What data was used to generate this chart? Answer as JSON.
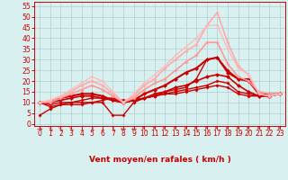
{
  "xlabel": "Vent moyen/en rafales ( km/h )",
  "bg_color": "#d8f0f0",
  "grid_color": "#b0d0d0",
  "x_ticks": [
    0,
    1,
    2,
    3,
    4,
    5,
    6,
    7,
    8,
    9,
    10,
    11,
    12,
    13,
    14,
    15,
    16,
    17,
    18,
    19,
    20,
    21,
    22,
    23
  ],
  "y_ticks": [
    0,
    5,
    10,
    15,
    20,
    25,
    30,
    35,
    40,
    45,
    50,
    55
  ],
  "ylim": [
    -1,
    57
  ],
  "xlim": [
    -0.5,
    23.5
  ],
  "arrows": [
    "→",
    "↘",
    "↘",
    "↘",
    "↓",
    "↓",
    "↓",
    "↓",
    "←",
    "←",
    "↖",
    "↖",
    "↖",
    "↖",
    "↖",
    "↖",
    "↖",
    "↖",
    "↖",
    "↖",
    "↖",
    "↖",
    "↖",
    "↖"
  ],
  "series": [
    {
      "x": [
        0,
        1,
        2,
        3,
        4,
        5,
        6,
        7,
        8,
        9,
        10,
        11,
        12,
        13,
        14,
        15,
        16,
        17,
        18,
        19,
        20,
        21,
        22,
        23
      ],
      "y": [
        4,
        7,
        9,
        10,
        10,
        10,
        10,
        4,
        4,
        10,
        12,
        13,
        15,
        16,
        17,
        21,
        30,
        31,
        25,
        21,
        21,
        14,
        14,
        14
      ],
      "color": "#cc0000",
      "lw": 1.0,
      "marker": "D",
      "ms": 2.0
    },
    {
      "x": [
        0,
        1,
        2,
        3,
        4,
        5,
        6,
        7,
        8,
        9,
        10,
        11,
        12,
        13,
        14,
        15,
        16,
        17,
        18,
        19,
        20,
        21,
        22,
        23
      ],
      "y": [
        10,
        9,
        10,
        10,
        11,
        12,
        12,
        12,
        10,
        11,
        12,
        13,
        14,
        15,
        16,
        17,
        18,
        20,
        19,
        15,
        14,
        13,
        13,
        14
      ],
      "color": "#cc0000",
      "lw": 1.0,
      "marker": "D",
      "ms": 2.0
    },
    {
      "x": [
        0,
        1,
        2,
        3,
        4,
        5,
        6,
        7,
        8,
        9,
        10,
        11,
        12,
        13,
        14,
        15,
        16,
        17,
        18,
        19,
        20,
        21,
        22,
        23
      ],
      "y": [
        10,
        8,
        9,
        9,
        9,
        10,
        11,
        12,
        11,
        11,
        12,
        13,
        14,
        14,
        15,
        16,
        17,
        18,
        17,
        14,
        13,
        13,
        13,
        14
      ],
      "color": "#cc0000",
      "lw": 1.0,
      "marker": "D",
      "ms": 2.0
    },
    {
      "x": [
        0,
        1,
        2,
        3,
        4,
        5,
        6,
        7,
        8,
        9,
        10,
        11,
        12,
        13,
        14,
        15,
        16,
        17,
        18,
        19,
        20,
        21,
        22,
        23
      ],
      "y": [
        10,
        10,
        11,
        12,
        13,
        13,
        12,
        11,
        10,
        11,
        12,
        14,
        15,
        17,
        18,
        20,
        22,
        23,
        22,
        18,
        15,
        13,
        13,
        14
      ],
      "color": "#cc0000",
      "lw": 1.2,
      "marker": "D",
      "ms": 2.5
    },
    {
      "x": [
        0,
        1,
        2,
        3,
        4,
        5,
        6,
        7,
        8,
        9,
        10,
        11,
        12,
        13,
        14,
        15,
        16,
        17,
        18,
        19,
        20,
        21,
        22,
        23
      ],
      "y": [
        10,
        10,
        12,
        13,
        14,
        14,
        13,
        11,
        10,
        11,
        14,
        16,
        18,
        21,
        24,
        26,
        30,
        31,
        24,
        21,
        20,
        14,
        13,
        14
      ],
      "color": "#cc0000",
      "lw": 1.5,
      "marker": "D",
      "ms": 2.5
    },
    {
      "x": [
        0,
        1,
        2,
        3,
        4,
        5,
        6,
        7,
        8,
        9,
        10,
        11,
        12,
        13,
        14,
        15,
        16,
        17,
        18,
        19,
        20,
        21,
        22,
        23
      ],
      "y": [
        10,
        10,
        12,
        14,
        16,
        18,
        16,
        13,
        10,
        12,
        16,
        19,
        21,
        25,
        29,
        32,
        38,
        38,
        28,
        22,
        20,
        15,
        14,
        14
      ],
      "color": "#ff9999",
      "lw": 1.2,
      "marker": "D",
      "ms": 2.0
    },
    {
      "x": [
        0,
        1,
        2,
        3,
        4,
        5,
        6,
        7,
        8,
        9,
        10,
        11,
        12,
        13,
        14,
        15,
        16,
        17,
        18,
        19,
        20,
        21,
        22,
        23
      ],
      "y": [
        10,
        11,
        13,
        15,
        18,
        20,
        18,
        14,
        10,
        13,
        18,
        21,
        26,
        30,
        34,
        37,
        46,
        52,
        38,
        27,
        23,
        14,
        13,
        14
      ],
      "color": "#ffaaaa",
      "lw": 1.2,
      "marker": "D",
      "ms": 2.0
    },
    {
      "x": [
        0,
        1,
        2,
        3,
        4,
        5,
        6,
        7,
        8,
        9,
        10,
        11,
        12,
        13,
        14,
        15,
        16,
        17,
        18,
        19,
        20,
        21,
        22,
        23
      ],
      "y": [
        10,
        11,
        13,
        16,
        19,
        22,
        20,
        15,
        10,
        14,
        19,
        23,
        27,
        32,
        36,
        40,
        46,
        46,
        35,
        26,
        23,
        14,
        13,
        14
      ],
      "color": "#ffbbbb",
      "lw": 1.0,
      "marker": "D",
      "ms": 1.8
    }
  ],
  "arrow_color": "#cc2222",
  "xlabel_color": "#cc0000",
  "tick_color": "#cc0000",
  "tick_fontsize": 5.5,
  "xlabel_fontsize": 6.5,
  "arrow_fontsize": 5.5
}
